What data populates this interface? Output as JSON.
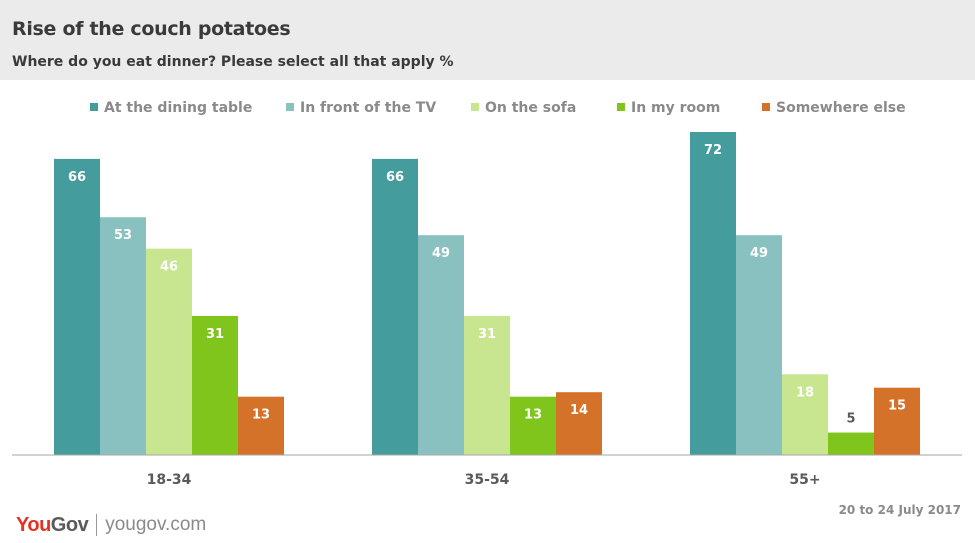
{
  "header": {
    "title": "Rise of the couch potatoes",
    "subtitle": "Where do you eat dinner? Please select all that apply %"
  },
  "footer": {
    "logo_you": "You",
    "logo_gov": "Gov",
    "url": "yougov.com",
    "date": "20 to 24 July 2017"
  },
  "chart_data": {
    "type": "bar",
    "categories": [
      "18-34",
      "35-54",
      "55+"
    ],
    "series": [
      {
        "name": "At the dining table",
        "color": "#459c9c",
        "values": [
          66,
          66,
          72
        ]
      },
      {
        "name": "In front of the TV",
        "color": "#89c1c1",
        "values": [
          53,
          49,
          49
        ]
      },
      {
        "name": "On the sofa",
        "color": "#c8e68f",
        "values": [
          46,
          31,
          18
        ]
      },
      {
        "name": "In my room",
        "color": "#80c51c",
        "values": [
          31,
          13,
          5
        ]
      },
      {
        "name": "Somewhere else",
        "color": "#d4722a",
        "values": [
          13,
          14,
          15
        ]
      }
    ],
    "ylim": [
      0,
      72
    ],
    "legend": "top",
    "grid": false,
    "data_labels": true
  }
}
